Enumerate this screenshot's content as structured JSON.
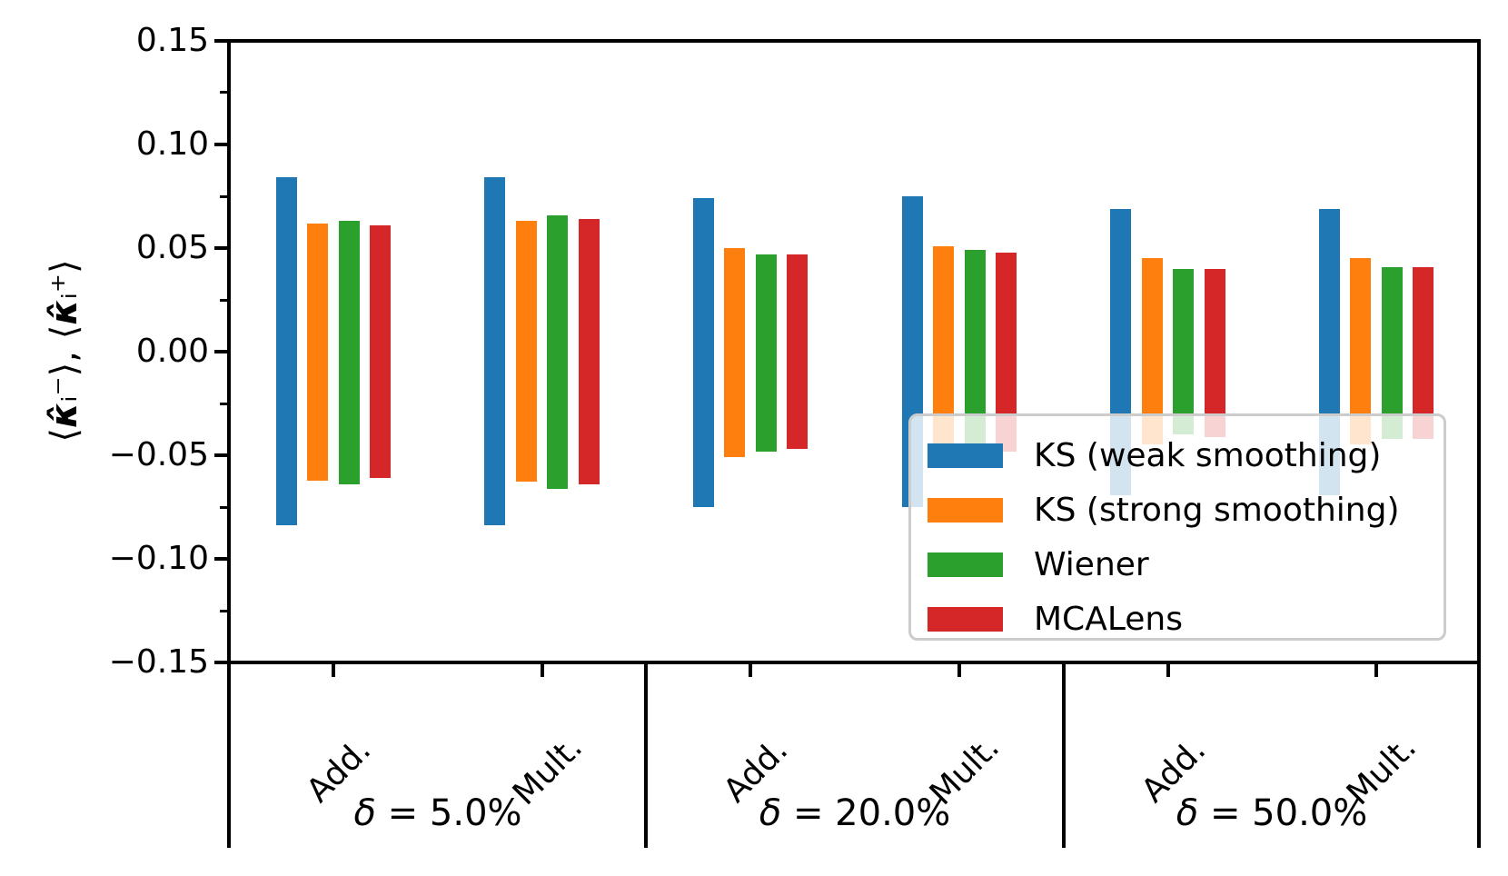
{
  "chart_data": {
    "type": "bar",
    "title": "",
    "ylabel": "⟨κ̂ᵢ⁻⟩, ⟨κ̂ᵢ⁺⟩",
    "xlabel": "",
    "ylim": [
      -0.15,
      0.15
    ],
    "grid": false,
    "ytick_labels": [
      "0.15",
      "0.10",
      "0.05",
      "0.00",
      "−0.05",
      "−0.10",
      "−0.15"
    ],
    "ytick_values": [
      0.15,
      0.1,
      0.05,
      0.0,
      -0.05,
      -0.1,
      -0.15
    ],
    "minor_ytick_values": [
      0.125,
      0.075,
      0.025,
      -0.025,
      -0.075,
      -0.125
    ],
    "sections": [
      {
        "label": "δ = 5.0%",
        "groups": [
          "Add.",
          "Mult."
        ]
      },
      {
        "label": "δ = 20.0%",
        "groups": [
          "Add.",
          "Mult."
        ]
      },
      {
        "label": "δ = 50.0%",
        "groups": [
          "Add.",
          "Mult."
        ]
      }
    ],
    "group_labels": [
      "Add.",
      "Mult.",
      "Add.",
      "Mult.",
      "Add.",
      "Mult."
    ],
    "legend_position": "lower right",
    "series": [
      {
        "name": "KS (weak smoothing)",
        "color": "#1f77b4",
        "upper": [
          0.084,
          0.084,
          0.074,
          0.075,
          0.069,
          0.069
        ],
        "lower": [
          -0.084,
          -0.084,
          -0.075,
          -0.075,
          -0.069,
          -0.069
        ]
      },
      {
        "name": "KS (strong smoothing)",
        "color": "#ff7f0e",
        "upper": [
          0.062,
          0.063,
          0.05,
          0.051,
          0.045,
          0.045
        ],
        "lower": [
          -0.062,
          -0.063,
          -0.051,
          -0.051,
          -0.045,
          -0.045
        ]
      },
      {
        "name": "Wiener",
        "color": "#2ca02c",
        "upper": [
          0.063,
          0.066,
          0.047,
          0.049,
          0.04,
          0.041
        ],
        "lower": [
          -0.064,
          -0.066,
          -0.048,
          -0.049,
          -0.04,
          -0.042
        ]
      },
      {
        "name": "MCALens",
        "color": "#d62728",
        "upper": [
          0.061,
          0.064,
          0.047,
          0.048,
          0.04,
          0.041
        ],
        "lower": [
          -0.061,
          -0.064,
          -0.047,
          -0.048,
          -0.041,
          -0.042
        ]
      }
    ],
    "axis_color": "#000000",
    "background": "#ffffff"
  }
}
